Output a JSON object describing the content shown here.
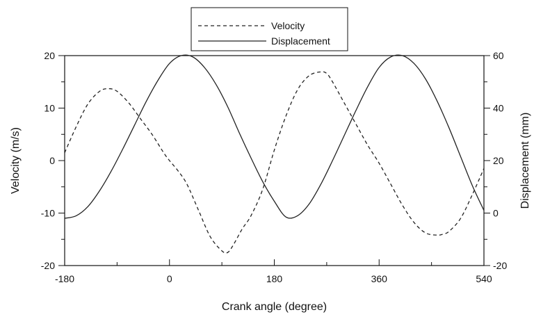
{
  "chart_data": {
    "type": "line",
    "xlabel": "Crank angle (degree)",
    "ylabel": "Velocity (m/s)",
    "y2label": "Displacement (mm)",
    "xlim": [
      -180,
      540
    ],
    "ylim": [
      -20,
      20
    ],
    "y2lim": [
      -20,
      60
    ],
    "x_ticks": [
      -180,
      0,
      180,
      360,
      540
    ],
    "y_ticks": [
      -20,
      -10,
      0,
      10,
      20
    ],
    "y2_ticks": [
      -20,
      0,
      20,
      40,
      60
    ],
    "grid": false,
    "legend": {
      "position": "top-center"
    },
    "series": [
      {
        "name": "Velocity",
        "axis": "left",
        "style": "dashed",
        "color": "#222222",
        "x": [
          -180,
          -160,
          -140,
          -120,
          -105,
          -90,
          -70,
          -50,
          -30,
          -10,
          0,
          15,
          30,
          50,
          70,
          90,
          100,
          110,
          125,
          140,
          160,
          180,
          200,
          220,
          240,
          260,
          270,
          280,
          300,
          320,
          340,
          360,
          380,
          400,
          420,
          440,
          460,
          470,
          480,
          500,
          520,
          540
        ],
        "y": [
          1.5,
          6.5,
          10.8,
          13.2,
          13.7,
          13.2,
          11.0,
          8.0,
          5.0,
          1.5,
          0.0,
          -2.0,
          -4.5,
          -9.5,
          -14.5,
          -17.2,
          -17.5,
          -16.0,
          -13.0,
          -10.5,
          -5.5,
          2.0,
          8.5,
          13.5,
          16.2,
          16.9,
          16.6,
          15.0,
          11.0,
          7.0,
          3.0,
          -0.5,
          -4.5,
          -8.5,
          -11.8,
          -13.8,
          -14.2,
          -14.0,
          -13.5,
          -11.0,
          -6.5,
          -1.5
        ]
      },
      {
        "name": "Displacement",
        "axis": "right",
        "style": "solid",
        "color": "#222222",
        "x": [
          -180,
          -160,
          -140,
          -120,
          -100,
          -80,
          -60,
          -40,
          -20,
          0,
          20,
          40,
          60,
          80,
          100,
          120,
          140,
          160,
          180,
          200,
          220,
          240,
          260,
          280,
          300,
          320,
          340,
          360,
          380,
          400,
          420,
          440,
          460,
          480,
          500,
          520,
          540
        ],
        "y": [
          -2.0,
          -1.0,
          2.5,
          8.5,
          16.0,
          24.5,
          33.5,
          42.5,
          50.5,
          57.0,
          60.0,
          59.5,
          55.5,
          49.0,
          40.5,
          30.5,
          21.0,
          12.0,
          4.5,
          -1.5,
          -1.0,
          3.5,
          11.0,
          20.0,
          29.5,
          39.0,
          48.0,
          55.5,
          59.5,
          60.0,
          57.0,
          51.0,
          42.5,
          32.5,
          21.5,
          10.5,
          1.0
        ]
      }
    ]
  }
}
